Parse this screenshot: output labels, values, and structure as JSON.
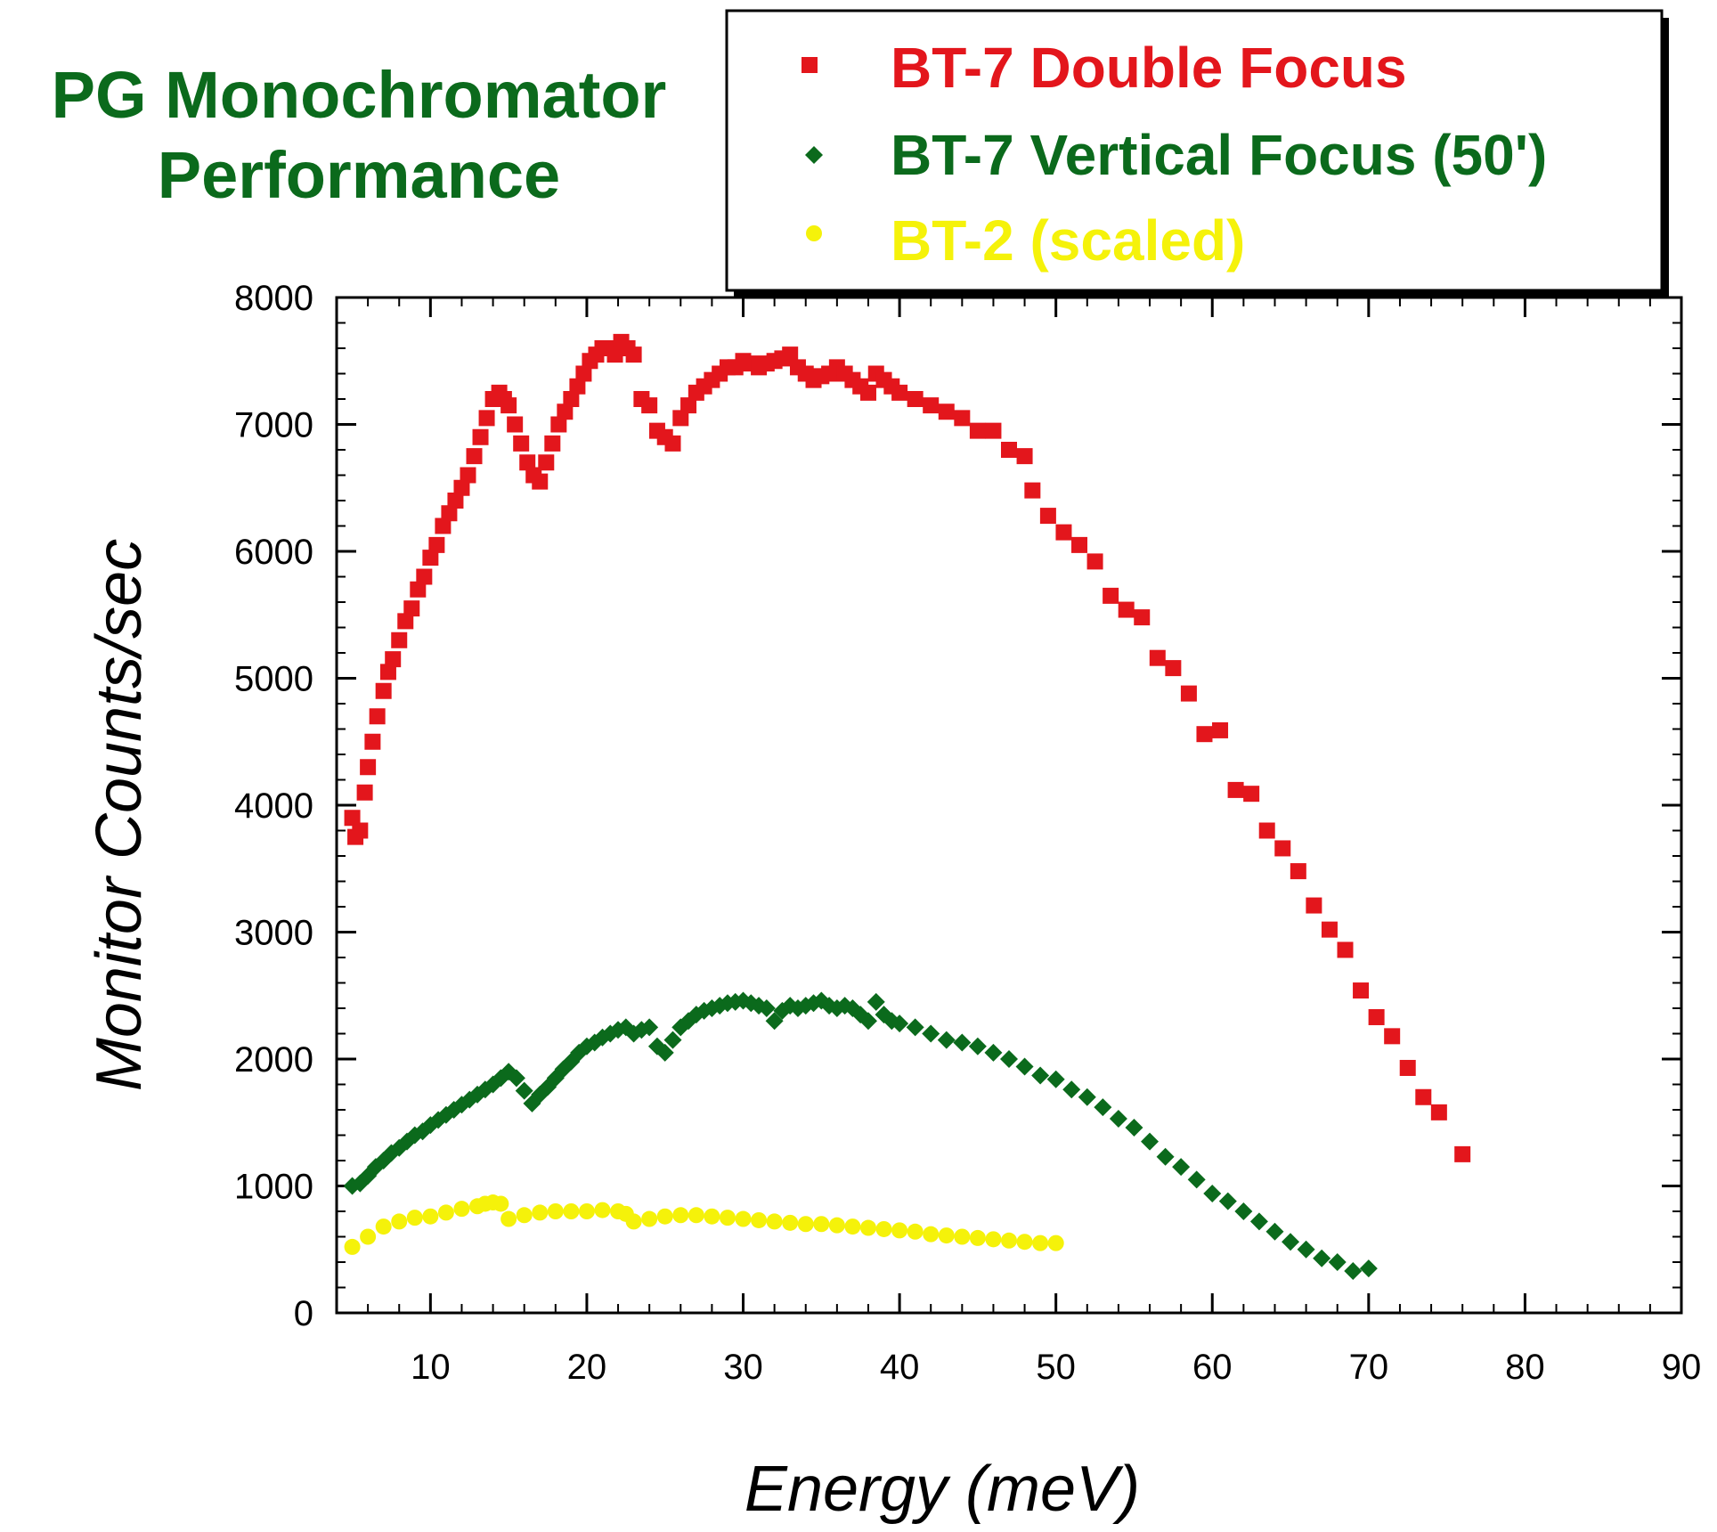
{
  "title_lines": [
    "PG Monochromator",
    "Performance"
  ],
  "colors": {
    "title": "#0b6a1c",
    "double_focus": "#e3161c",
    "vertical_focus": "#0b6a1c",
    "bt2": "#f5f20a"
  },
  "chart_data": {
    "type": "scatter",
    "xlabel": "Energy (meV)",
    "ylabel": "Monitor Counts/sec",
    "xlim": [
      4,
      90
    ],
    "ylim": [
      0,
      8000
    ],
    "xticks": [
      10,
      20,
      30,
      40,
      50,
      60,
      70,
      80,
      90
    ],
    "yticks": [
      0,
      1000,
      2000,
      3000,
      4000,
      5000,
      6000,
      7000,
      8000
    ],
    "grid": false,
    "legend_position": "top-right",
    "series": [
      {
        "name": "BT-7 Double Focus",
        "marker": "square",
        "color": "#e3161c",
        "points": [
          [
            5,
            3900
          ],
          [
            5.2,
            3750
          ],
          [
            5.5,
            3800
          ],
          [
            5.8,
            4100
          ],
          [
            6,
            4300
          ],
          [
            6.3,
            4500
          ],
          [
            6.6,
            4700
          ],
          [
            7,
            4900
          ],
          [
            7.3,
            5050
          ],
          [
            7.6,
            5150
          ],
          [
            8,
            5300
          ],
          [
            8.4,
            5450
          ],
          [
            8.8,
            5550
          ],
          [
            9.2,
            5700
          ],
          [
            9.6,
            5800
          ],
          [
            10,
            5950
          ],
          [
            10.4,
            6050
          ],
          [
            10.8,
            6200
          ],
          [
            11.2,
            6300
          ],
          [
            11.6,
            6400
          ],
          [
            12,
            6500
          ],
          [
            12.4,
            6600
          ],
          [
            12.8,
            6750
          ],
          [
            13.2,
            6900
          ],
          [
            13.6,
            7050
          ],
          [
            14,
            7200
          ],
          [
            14.4,
            7250
          ],
          [
            14.7,
            7200
          ],
          [
            15,
            7150
          ],
          [
            15.4,
            7000
          ],
          [
            15.8,
            6850
          ],
          [
            16.2,
            6700
          ],
          [
            16.6,
            6600
          ],
          [
            17,
            6550
          ],
          [
            17.4,
            6700
          ],
          [
            17.8,
            6850
          ],
          [
            18.2,
            7000
          ],
          [
            18.6,
            7100
          ],
          [
            19,
            7200
          ],
          [
            19.4,
            7300
          ],
          [
            19.8,
            7400
          ],
          [
            20.2,
            7500
          ],
          [
            20.6,
            7550
          ],
          [
            21,
            7600
          ],
          [
            21.4,
            7600
          ],
          [
            21.8,
            7550
          ],
          [
            22.2,
            7650
          ],
          [
            22.6,
            7600
          ],
          [
            23,
            7550
          ],
          [
            23.5,
            7200
          ],
          [
            24,
            7150
          ],
          [
            24.5,
            6950
          ],
          [
            25,
            6900
          ],
          [
            25.5,
            6850
          ],
          [
            26,
            7050
          ],
          [
            26.5,
            7150
          ],
          [
            27,
            7250
          ],
          [
            27.5,
            7300
          ],
          [
            28,
            7350
          ],
          [
            28.5,
            7400
          ],
          [
            29,
            7450
          ],
          [
            29.5,
            7450
          ],
          [
            30,
            7500
          ],
          [
            30.5,
            7480
          ],
          [
            31,
            7450
          ],
          [
            31.5,
            7480
          ],
          [
            32,
            7500
          ],
          [
            32.5,
            7520
          ],
          [
            33,
            7550
          ],
          [
            33.5,
            7450
          ],
          [
            34,
            7400
          ],
          [
            34.5,
            7350
          ],
          [
            35,
            7380
          ],
          [
            35.5,
            7400
          ],
          [
            36,
            7450
          ],
          [
            36.5,
            7400
          ],
          [
            37,
            7350
          ],
          [
            37.5,
            7300
          ],
          [
            38,
            7250
          ],
          [
            38.5,
            7400
          ],
          [
            39,
            7350
          ],
          [
            39.5,
            7300
          ],
          [
            40,
            7250
          ],
          [
            41,
            7200
          ],
          [
            42,
            7150
          ],
          [
            43,
            7100
          ],
          [
            44,
            7050
          ],
          [
            45,
            6950
          ],
          [
            46,
            6950
          ],
          [
            47,
            6800
          ],
          [
            48,
            6750
          ],
          [
            48.5,
            6480
          ],
          [
            49.5,
            6280
          ],
          [
            50.5,
            6150
          ],
          [
            51.5,
            6050
          ],
          [
            52.5,
            5920
          ],
          [
            53.5,
            5650
          ],
          [
            54.5,
            5540
          ],
          [
            55.5,
            5480
          ],
          [
            56.5,
            5160
          ],
          [
            57.5,
            5080
          ],
          [
            58.5,
            4880
          ],
          [
            59.5,
            4560
          ],
          [
            60.5,
            4590
          ],
          [
            61.5,
            4120
          ],
          [
            62.5,
            4090
          ],
          [
            63.5,
            3800
          ],
          [
            64.5,
            3660
          ],
          [
            65.5,
            3480
          ],
          [
            66.5,
            3210
          ],
          [
            67.5,
            3020
          ],
          [
            68.5,
            2860
          ],
          [
            69.5,
            2540
          ],
          [
            70.5,
            2330
          ],
          [
            71.5,
            2180
          ],
          [
            72.5,
            1930
          ],
          [
            73.5,
            1700
          ],
          [
            74.5,
            1580
          ],
          [
            76,
            1250
          ]
        ]
      },
      {
        "name": "BT-7 Vertical Focus (50')",
        "marker": "diamond",
        "color": "#0b6a1c",
        "points": [
          [
            5,
            1000
          ],
          [
            5.5,
            1020
          ],
          [
            6,
            1080
          ],
          [
            6.5,
            1150
          ],
          [
            7,
            1200
          ],
          [
            7.5,
            1260
          ],
          [
            8,
            1300
          ],
          [
            8.5,
            1350
          ],
          [
            9,
            1400
          ],
          [
            9.5,
            1430
          ],
          [
            10,
            1480
          ],
          [
            10.5,
            1520
          ],
          [
            11,
            1560
          ],
          [
            11.5,
            1600
          ],
          [
            12,
            1640
          ],
          [
            12.5,
            1680
          ],
          [
            13,
            1720
          ],
          [
            13.5,
            1760
          ],
          [
            14,
            1800
          ],
          [
            14.5,
            1850
          ],
          [
            15,
            1900
          ],
          [
            15.5,
            1850
          ],
          [
            16,
            1750
          ],
          [
            16.5,
            1650
          ],
          [
            17,
            1720
          ],
          [
            17.5,
            1780
          ],
          [
            18,
            1850
          ],
          [
            18.5,
            1920
          ],
          [
            19,
            1980
          ],
          [
            19.5,
            2050
          ],
          [
            20,
            2100
          ],
          [
            20.5,
            2130
          ],
          [
            21,
            2170
          ],
          [
            21.5,
            2200
          ],
          [
            22,
            2230
          ],
          [
            22.5,
            2250
          ],
          [
            23,
            2200
          ],
          [
            23.5,
            2230
          ],
          [
            24,
            2250
          ],
          [
            24.5,
            2100
          ],
          [
            25,
            2050
          ],
          [
            25.5,
            2150
          ],
          [
            26,
            2250
          ],
          [
            26.5,
            2300
          ],
          [
            27,
            2350
          ],
          [
            27.5,
            2380
          ],
          [
            28,
            2400
          ],
          [
            28.5,
            2420
          ],
          [
            29,
            2440
          ],
          [
            29.5,
            2450
          ],
          [
            30,
            2460
          ],
          [
            30.5,
            2440
          ],
          [
            31,
            2420
          ],
          [
            31.5,
            2400
          ],
          [
            32,
            2300
          ],
          [
            32.5,
            2380
          ],
          [
            33,
            2420
          ],
          [
            33.5,
            2400
          ],
          [
            34,
            2420
          ],
          [
            34.5,
            2440
          ],
          [
            35,
            2460
          ],
          [
            35.5,
            2420
          ],
          [
            36,
            2400
          ],
          [
            36.5,
            2420
          ],
          [
            37,
            2400
          ],
          [
            37.5,
            2350
          ],
          [
            38,
            2300
          ],
          [
            38.5,
            2450
          ],
          [
            39,
            2350
          ],
          [
            39.5,
            2300
          ],
          [
            40,
            2280
          ],
          [
            41,
            2250
          ],
          [
            42,
            2200
          ],
          [
            43,
            2150
          ],
          [
            44,
            2130
          ],
          [
            45,
            2100
          ],
          [
            46,
            2050
          ],
          [
            47,
            2000
          ],
          [
            48,
            1940
          ],
          [
            49,
            1870
          ],
          [
            50,
            1840
          ],
          [
            51,
            1760
          ],
          [
            52,
            1700
          ],
          [
            53,
            1620
          ],
          [
            54,
            1530
          ],
          [
            55,
            1460
          ],
          [
            56,
            1350
          ],
          [
            57,
            1230
          ],
          [
            58,
            1150
          ],
          [
            59,
            1050
          ],
          [
            60,
            940
          ],
          [
            61,
            880
          ],
          [
            62,
            800
          ],
          [
            63,
            720
          ],
          [
            64,
            640
          ],
          [
            65,
            560
          ],
          [
            66,
            500
          ],
          [
            67,
            430
          ],
          [
            68,
            400
          ],
          [
            69,
            330
          ],
          [
            70,
            350
          ]
        ]
      },
      {
        "name": "BT-2 (scaled)",
        "marker": "circle",
        "color": "#f5f20a",
        "points": [
          [
            5,
            520
          ],
          [
            6,
            600
          ],
          [
            7,
            680
          ],
          [
            8,
            720
          ],
          [
            9,
            750
          ],
          [
            10,
            760
          ],
          [
            11,
            790
          ],
          [
            12,
            820
          ],
          [
            13,
            840
          ],
          [
            13.5,
            860
          ],
          [
            14,
            870
          ],
          [
            14.5,
            860
          ],
          [
            15,
            740
          ],
          [
            16,
            770
          ],
          [
            17,
            790
          ],
          [
            18,
            800
          ],
          [
            19,
            800
          ],
          [
            20,
            800
          ],
          [
            21,
            810
          ],
          [
            22,
            800
          ],
          [
            22.5,
            780
          ],
          [
            23,
            720
          ],
          [
            24,
            740
          ],
          [
            25,
            760
          ],
          [
            26,
            770
          ],
          [
            27,
            770
          ],
          [
            28,
            760
          ],
          [
            29,
            750
          ],
          [
            30,
            740
          ],
          [
            31,
            730
          ],
          [
            32,
            720
          ],
          [
            33,
            710
          ],
          [
            34,
            700
          ],
          [
            35,
            700
          ],
          [
            36,
            690
          ],
          [
            37,
            680
          ],
          [
            38,
            670
          ],
          [
            39,
            660
          ],
          [
            40,
            650
          ],
          [
            41,
            640
          ],
          [
            42,
            620
          ],
          [
            43,
            610
          ],
          [
            44,
            600
          ],
          [
            45,
            590
          ],
          [
            46,
            580
          ],
          [
            47,
            570
          ],
          [
            48,
            560
          ],
          [
            49,
            550
          ],
          [
            50,
            550
          ]
        ]
      }
    ]
  }
}
